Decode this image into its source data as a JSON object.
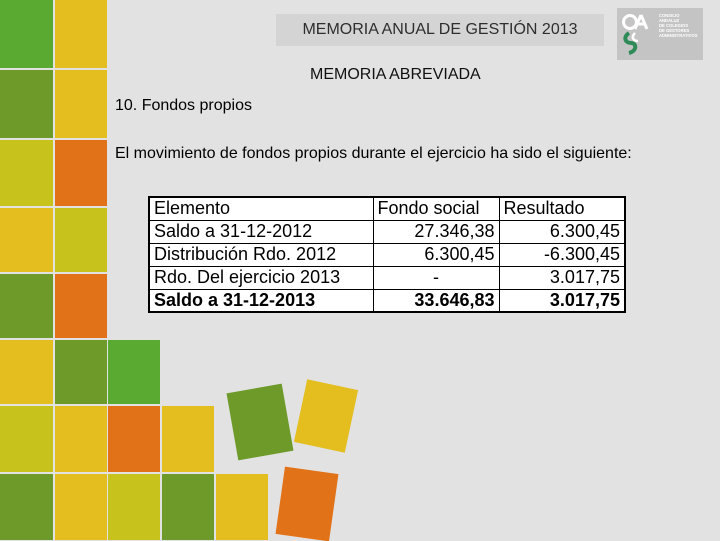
{
  "header": {
    "title": "MEMORIA ANUAL DE GESTIÓN 2013",
    "logo_text": [
      "CONSEJO",
      "ANDALUZ",
      "DE COLEGIOS",
      "DE GESTORES",
      "ADMINISTRATIVOS"
    ]
  },
  "main": {
    "subtitle": "MEMORIA ABREVIADA",
    "section_title": "10. Fondos propios",
    "body": "El movimiento de fondos propios durante el ejercicio ha sido el siguiente:"
  },
  "table": {
    "headers": [
      "Elemento",
      "Fondo social",
      "Resultado"
    ],
    "rows": [
      [
        "Saldo a 31-12-2012",
        "27.346,38",
        "6.300,45"
      ],
      [
        "Distribución Rdo. 2012",
        "6.300,45",
        "-6.300,45"
      ],
      [
        "Rdo. Del ejercicio 2013",
        "-",
        "3.017,75"
      ],
      [
        "Saldo a 31-12-2013",
        "33.646,83",
        "3.017,75"
      ]
    ]
  },
  "colors": {
    "green": "#5aaa32",
    "olive": "#6e9a2a",
    "yellow": "#e3be1e",
    "orange": "#e27218",
    "lime": "#b7c61c",
    "logo_green": "#2e8b57"
  }
}
